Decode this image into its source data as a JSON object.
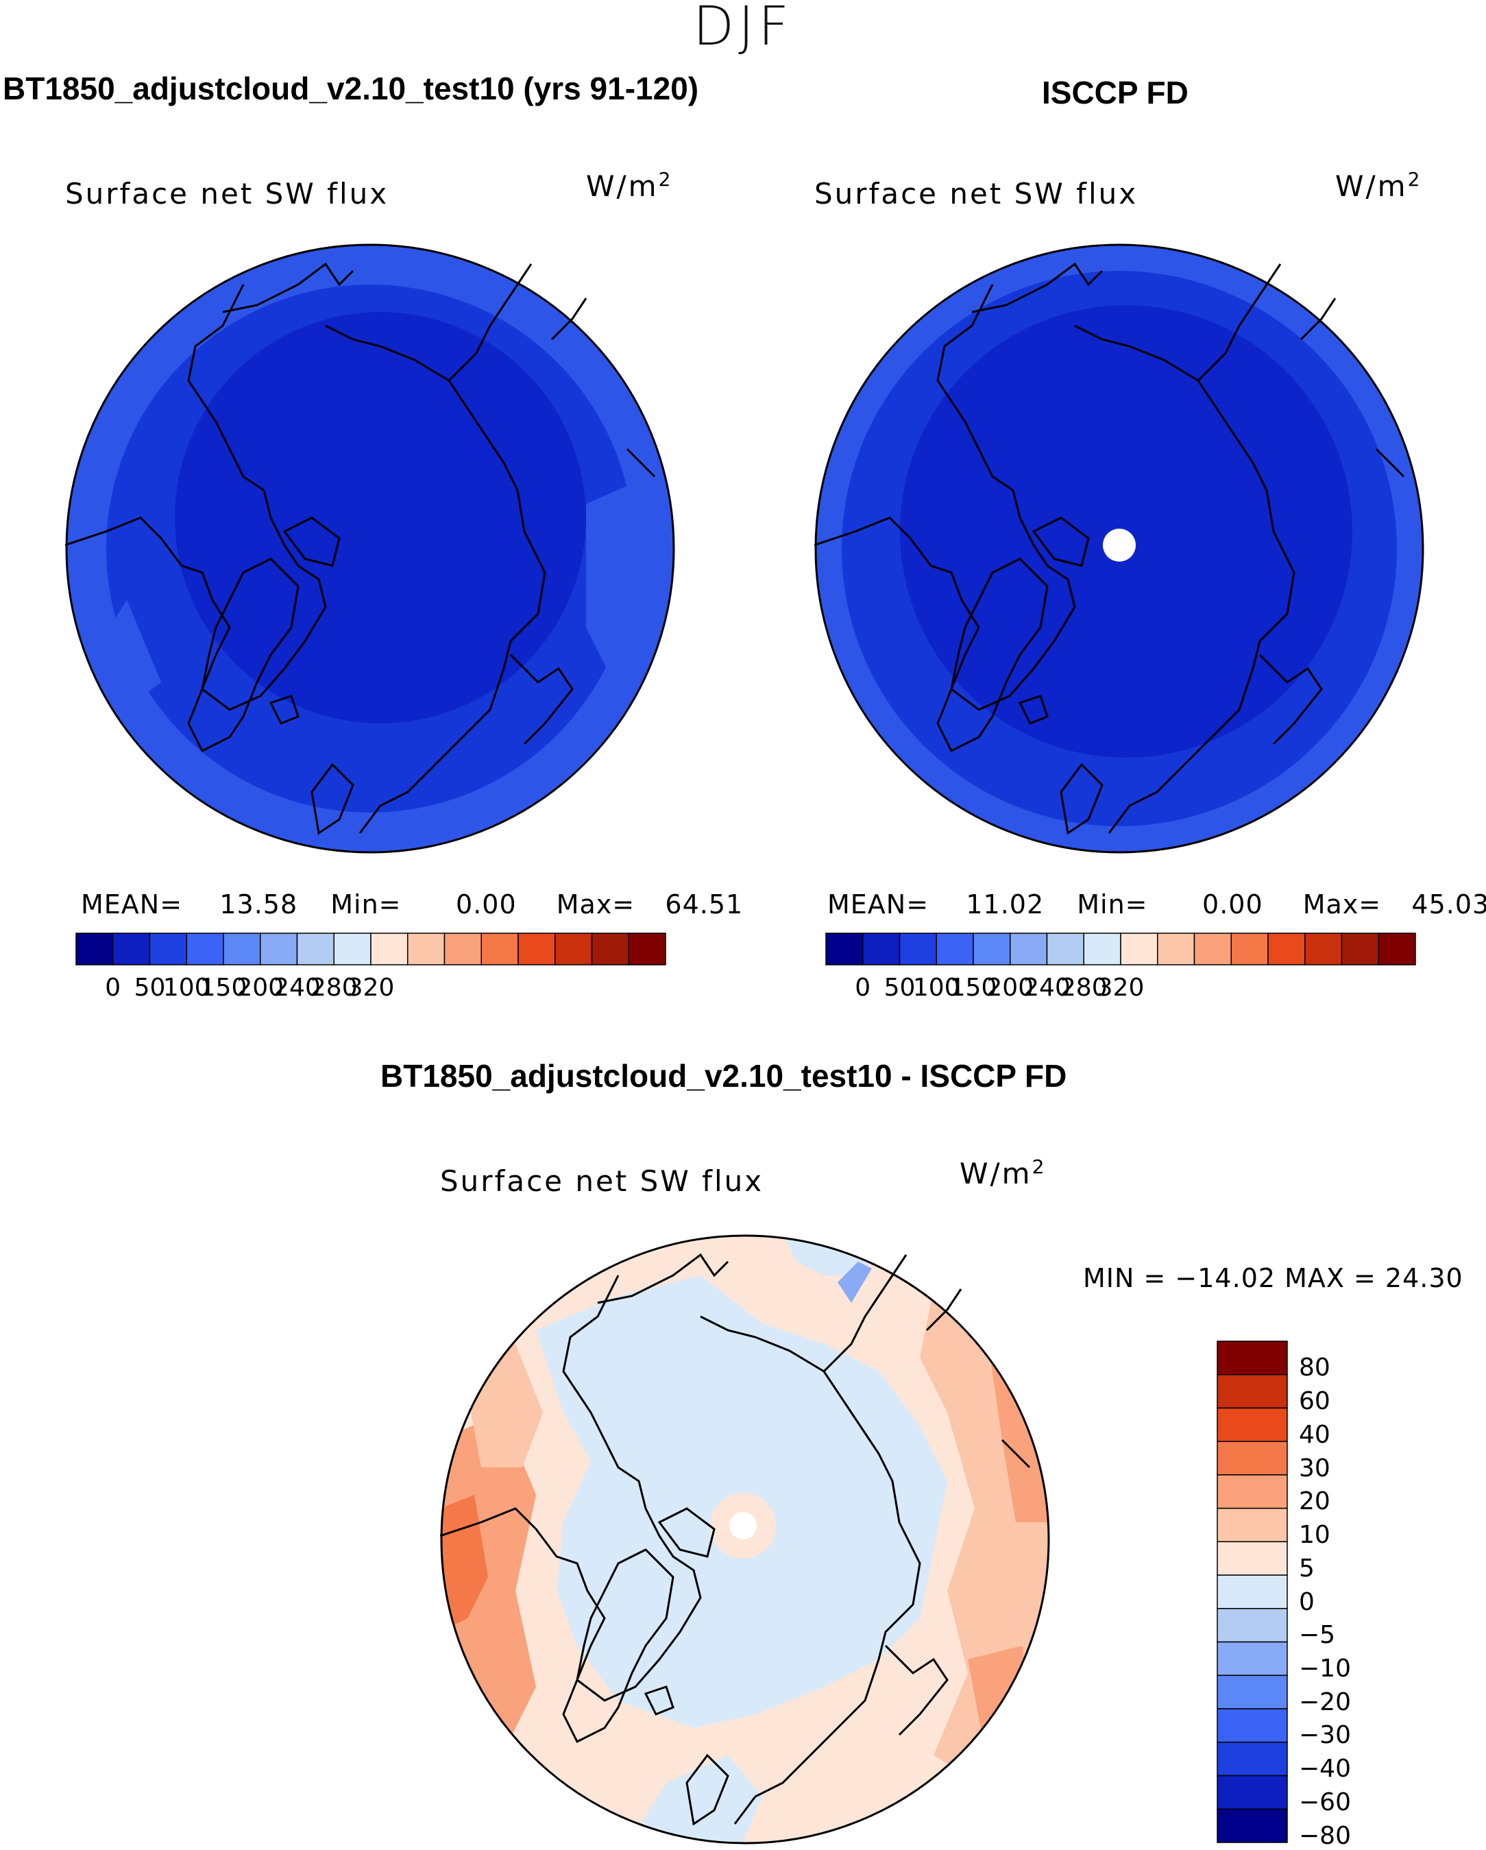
{
  "season": "DJF",
  "colors": {
    "abs_levels": [
      "#00008b",
      "#0d1fbf",
      "#1f40e0",
      "#3b63f5",
      "#5c87f7",
      "#89aaf5",
      "#b3cdf2",
      "#d8e9fa",
      "#fde6d8",
      "#fbc6a9",
      "#f9a27c",
      "#f57849",
      "#e84a1c",
      "#c9300d",
      "#a11a08",
      "#800000"
    ],
    "diff_levels": [
      "#00008b",
      "#0d1fbf",
      "#1f40e0",
      "#3b63f5",
      "#5c87f7",
      "#89aaf5",
      "#b3cdf2",
      "#d8e9fa",
      "#fde6d8",
      "#fbc6a9",
      "#f9a27c",
      "#f57849",
      "#e84a1c",
      "#c9300d",
      "#800000"
    ],
    "map_deep": "#0c24c9",
    "map_mid": "#1637d8",
    "map_light": "#2d56e8"
  },
  "panels": {
    "model": {
      "title": "BT1850_adjustcloud_v2.10_test10 (yrs 91-120)",
      "variable": "Surface net SW flux",
      "units_base": "W/m",
      "units_exp": "2",
      "mean_label": "MEAN=",
      "mean": "13.58",
      "min_label": "Min=",
      "min": "0.00",
      "max_label": "Max=",
      "max": "64.51"
    },
    "obs": {
      "title": "ISCCP FD",
      "variable": "Surface net SW flux",
      "units_base": "W/m",
      "units_exp": "2",
      "mean_label": "MEAN=",
      "mean": "11.02",
      "min_label": "Min=",
      "min": "0.00",
      "max_label": "Max=",
      "max": "45.03"
    },
    "diff": {
      "title": "BT1850_adjustcloud_v2.10_test10 - ISCCP FD",
      "variable": "Surface net SW flux",
      "units_base": "W/m",
      "units_exp": "2",
      "minmax": "MIN = −14.02 MAX =   24.30"
    }
  },
  "colorbar_abs_ticks": [
    "0",
    "50",
    "100",
    "150",
    "200",
    "240",
    "280",
    "320"
  ],
  "colorbar_diff_ticks": [
    "80",
    "60",
    "40",
    "30",
    "20",
    "10",
    "5",
    "0",
    "−5",
    "−10",
    "−20",
    "−30",
    "−40",
    "−60",
    "−80"
  ]
}
